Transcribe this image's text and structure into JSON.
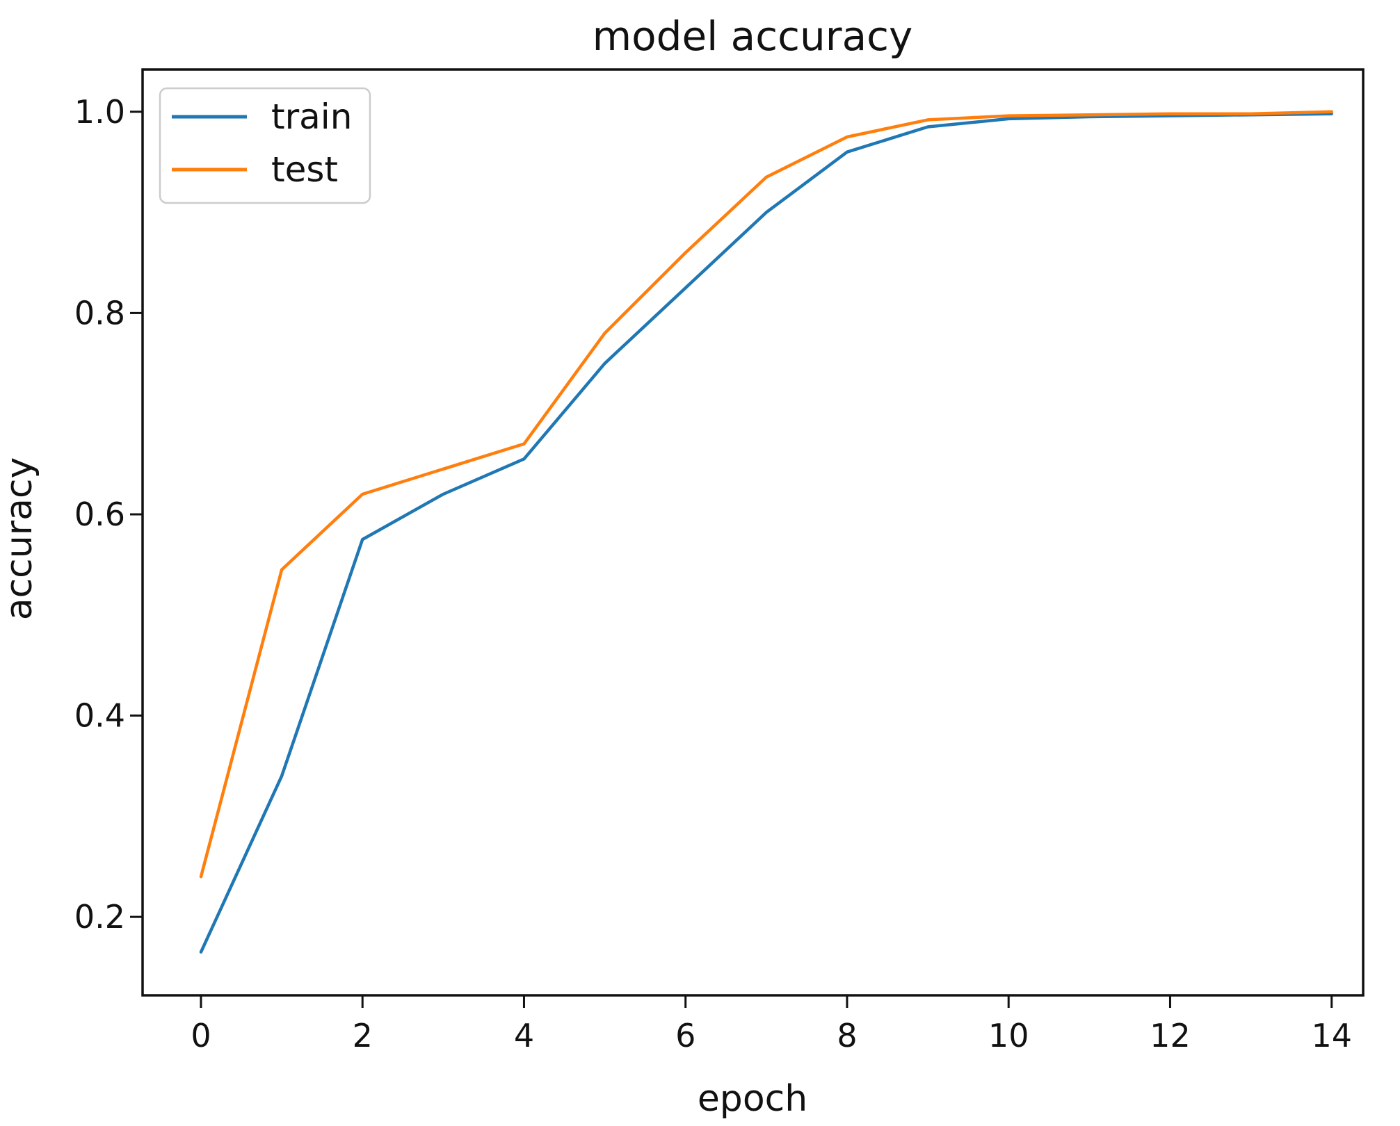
{
  "chart_data": {
    "type": "line",
    "title": "model accuracy",
    "xlabel": "epoch",
    "ylabel": "accuracy",
    "x": [
      0,
      1,
      2,
      3,
      4,
      5,
      6,
      7,
      8,
      9,
      10,
      11,
      12,
      13,
      14
    ],
    "series": [
      {
        "name": "train",
        "color": "#1f77b4",
        "values": [
          0.165,
          0.34,
          0.575,
          0.62,
          0.655,
          0.75,
          0.825,
          0.9,
          0.96,
          0.985,
          0.993,
          0.995,
          0.996,
          0.997,
          0.998
        ]
      },
      {
        "name": "test",
        "color": "#ff7f0e",
        "values": [
          0.24,
          0.545,
          0.62,
          0.645,
          0.67,
          0.78,
          0.86,
          0.935,
          0.975,
          0.992,
          0.996,
          0.997,
          0.998,
          0.998,
          1.0
        ]
      }
    ],
    "xlim": [
      -0.723,
      14.39
    ],
    "ylim": [
      0.122,
      1.042
    ],
    "xticks": [
      0,
      2,
      4,
      6,
      8,
      10,
      12,
      14
    ],
    "xtick_labels": [
      "0",
      "2",
      "4",
      "6",
      "8",
      "10",
      "12",
      "14"
    ],
    "yticks": [
      0.2,
      0.4,
      0.6,
      0.8,
      1.0
    ],
    "ytick_labels": [
      "0.2",
      "0.4",
      "0.6",
      "0.8",
      "1.0"
    ],
    "grid": false,
    "legend_position": "upper left",
    "legend": [
      "train",
      "test"
    ],
    "colors": {
      "axis": "#111111",
      "legend_border": "#cccccc",
      "background": "#ffffff"
    }
  }
}
